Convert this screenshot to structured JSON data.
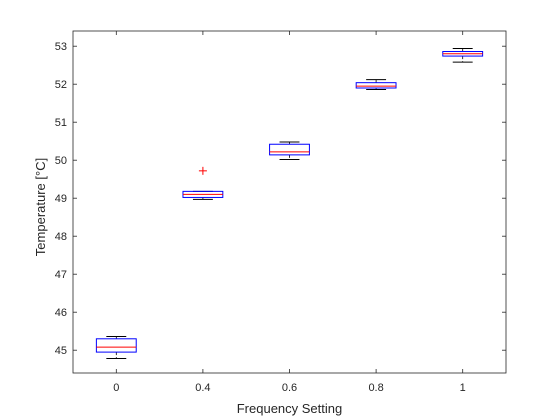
{
  "chart_data": {
    "type": "boxplot",
    "title": "",
    "xlabel": "Frequency Setting",
    "ylabel": "Temperature [°C]",
    "categories": [
      "0",
      "0.4",
      "0.6",
      "0.8",
      "1"
    ],
    "ylim": [
      44.4,
      53.4
    ],
    "yticks": [
      45,
      46,
      47,
      48,
      49,
      50,
      51,
      52,
      53
    ],
    "grid": false,
    "legend": "none",
    "boxes": [
      {
        "category": "0",
        "whisker_low": 44.78,
        "q1": 44.95,
        "median": 45.08,
        "q3": 45.3,
        "whisker_high": 45.36,
        "outliers": []
      },
      {
        "category": "0.4",
        "whisker_low": 48.97,
        "q1": 49.02,
        "median": 49.1,
        "q3": 49.18,
        "whisker_high": 49.18,
        "outliers": [
          49.72
        ]
      },
      {
        "category": "0.6",
        "whisker_low": 50.02,
        "q1": 50.14,
        "median": 50.22,
        "q3": 50.42,
        "whisker_high": 50.48,
        "outliers": []
      },
      {
        "category": "0.8",
        "whisker_low": 51.86,
        "q1": 51.9,
        "median": 51.95,
        "q3": 52.04,
        "whisker_high": 52.12,
        "outliers": []
      },
      {
        "category": "1",
        "whisker_low": 52.58,
        "q1": 52.74,
        "median": 52.8,
        "q3": 52.86,
        "whisker_high": 52.94,
        "outliers": []
      }
    ],
    "colors": {
      "box": "#0000ff",
      "median": "#ff0000",
      "whisker": "#000000",
      "outlier": "#ff0000",
      "axis": "#262626"
    }
  }
}
